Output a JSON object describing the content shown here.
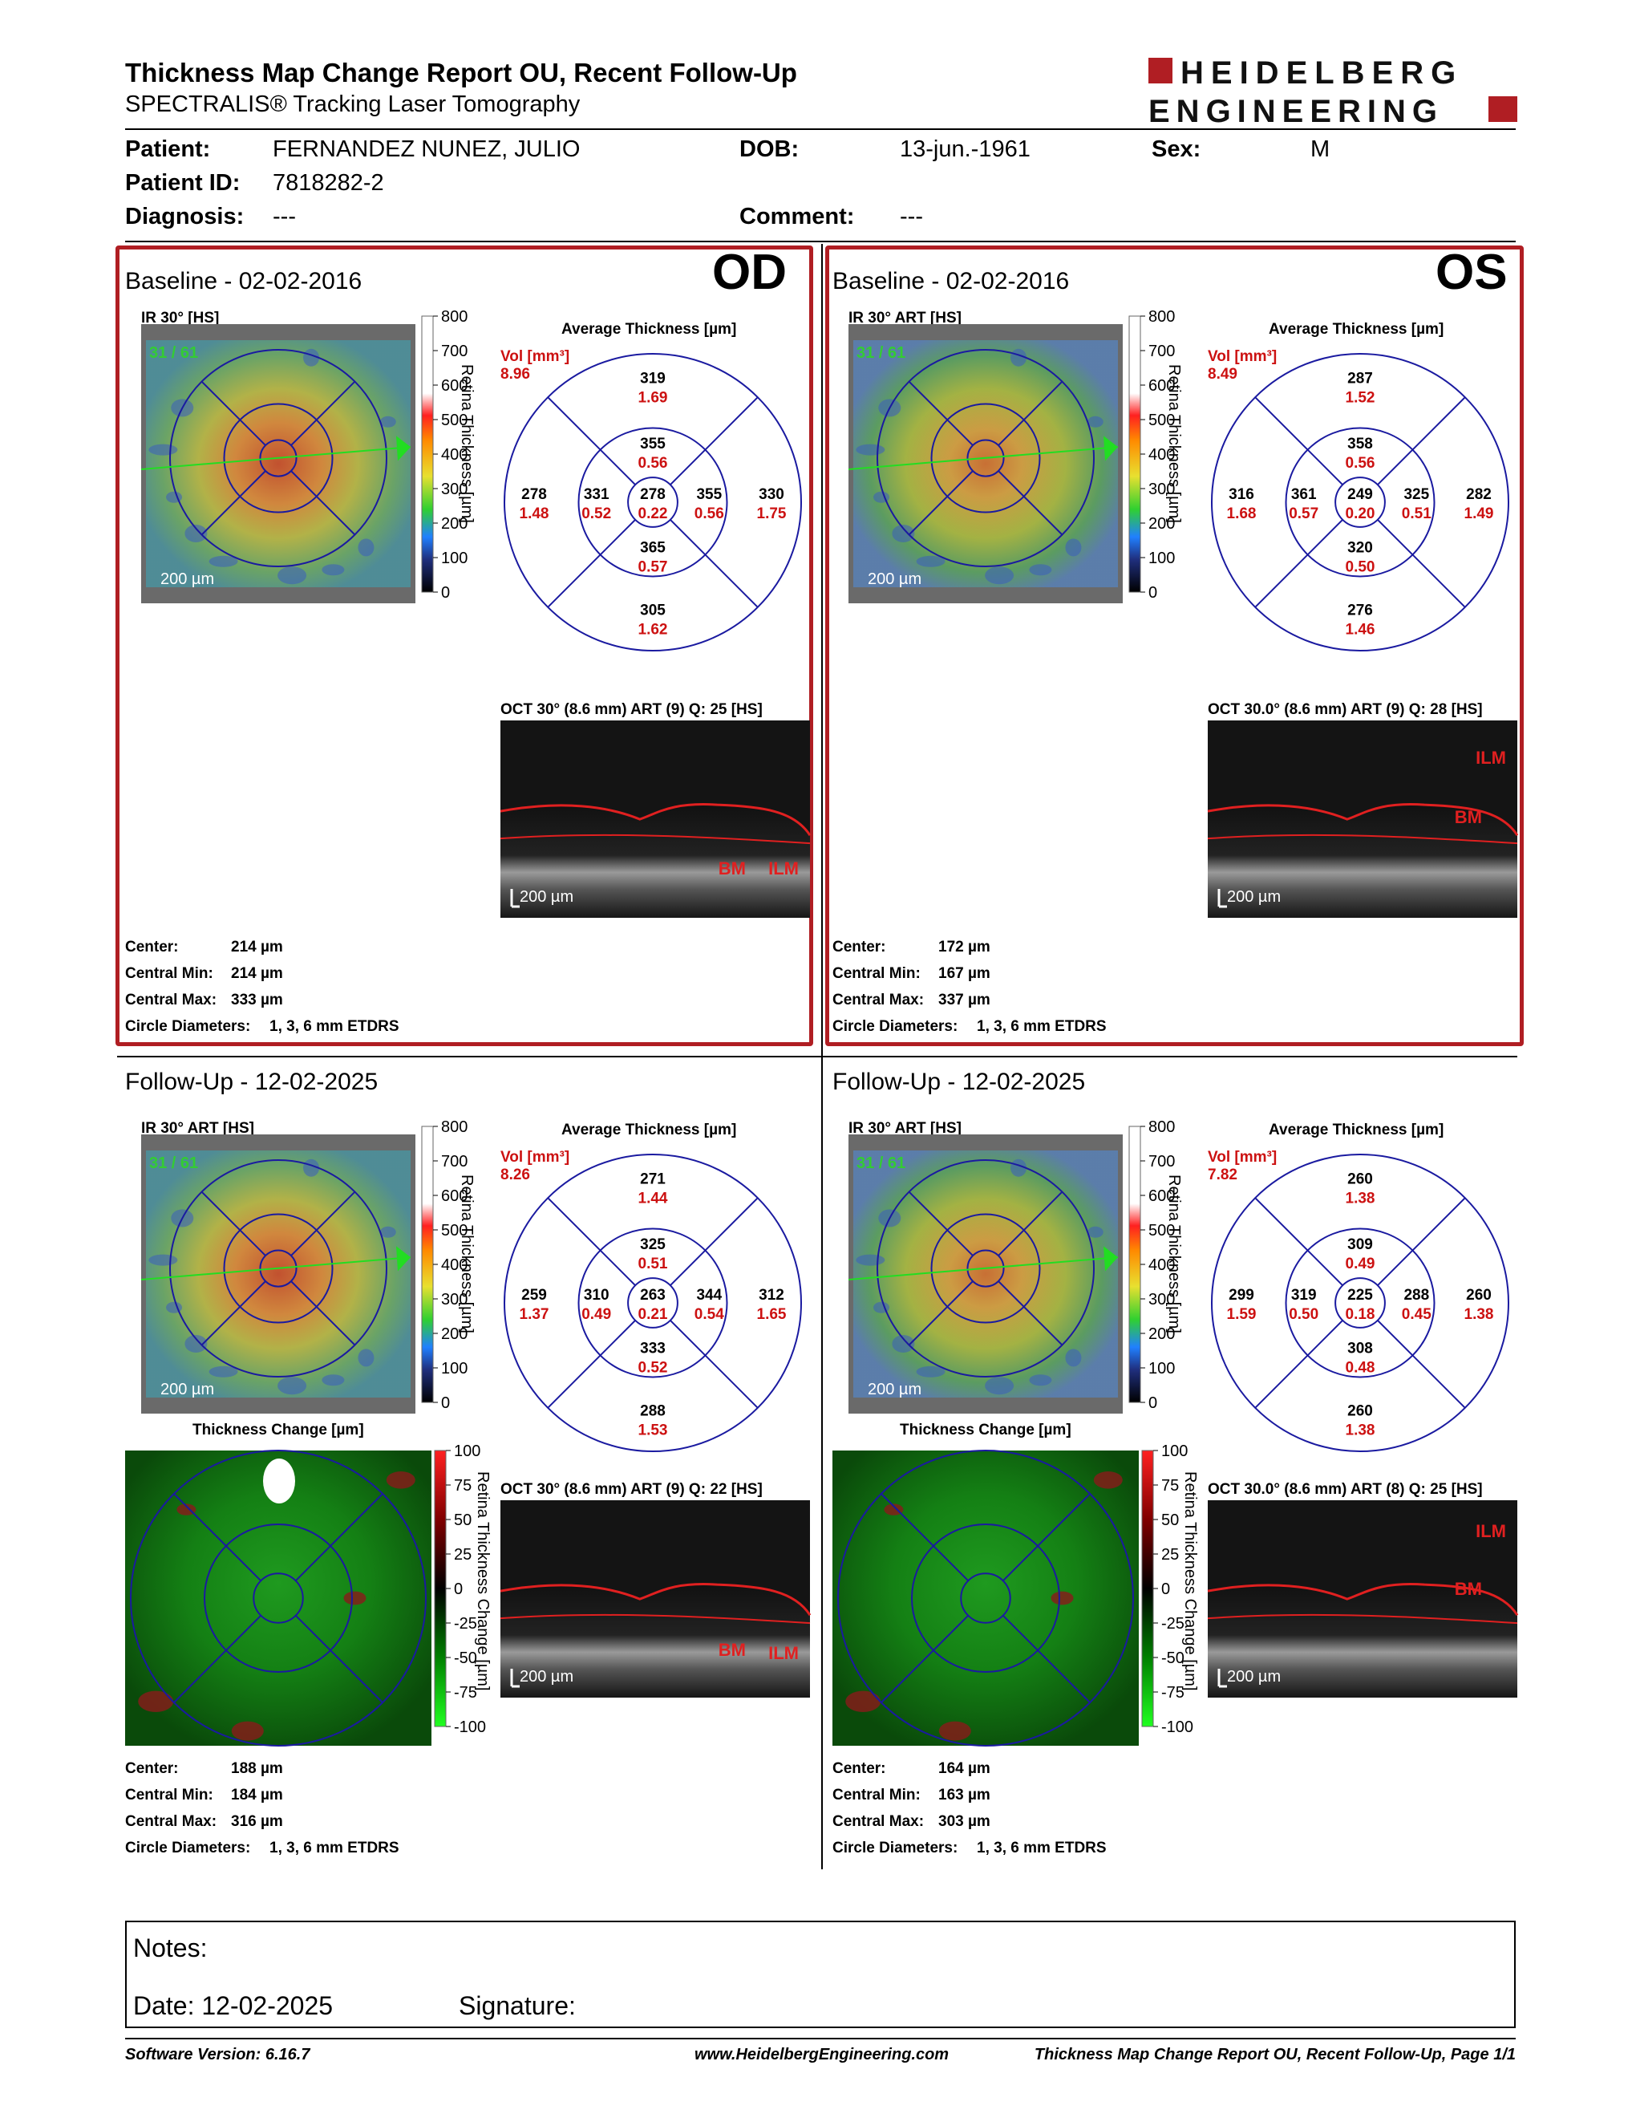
{
  "header": {
    "title": "Thickness Map Change Report OU, Recent Follow-Up",
    "subtitle": "SPECTRALIS® Tracking Laser Tomography",
    "logo_line1": "HEIDELBERG",
    "logo_line2": "ENGINEERING"
  },
  "patient": {
    "patient_label": "Patient:",
    "patient_value": "FERNANDEZ NUNEZ, JULIO",
    "id_label": "Patient ID:",
    "id_value": "7818282-2",
    "diagnosis_label": "Diagnosis:",
    "diagnosis_value": "---",
    "dob_label": "DOB:",
    "dob_value": "13-jun.-1961",
    "comment_label": "Comment:",
    "comment_value": "---",
    "sex_label": "Sex:",
    "sex_value": "M"
  },
  "colors": {
    "accent": "#B01E23",
    "circle": "#1A1AA0",
    "vol": "#CC1111",
    "fovea_label": "#33CC33"
  },
  "common": {
    "avg_thickness_title": "Average Thickness [µm]",
    "vol_label": "Vol [mm³]",
    "scale_bar": "200 µm",
    "colorbar_label": "Retina Thickness [µm]",
    "colorbar_ticks": [
      "800",
      "700",
      "600",
      "500",
      "400",
      "300",
      "200",
      "100",
      "0"
    ],
    "change_title": "Thickness Change [µm]",
    "change_bar_label": "Retina Thickness Change [µm]",
    "change_ticks": [
      "100",
      "75",
      "50",
      "25",
      "0",
      "-25",
      "-50",
      "-75",
      "-100"
    ],
    "ilm": "ILM",
    "bm": "BM",
    "label_center": "Center:",
    "label_cmin": "Central Min:",
    "label_cmax": "Central Max:",
    "label_circle": "Circle Diameters:"
  },
  "panels": {
    "od_base": {
      "eye": "OD",
      "title": "Baseline - 02-02-2016",
      "ir_label": "IR 30° [HS]",
      "fovea_text": "31 / 61",
      "oct_label": "OCT 30° (8.6 mm) ART (9) Q: 25 [HS]",
      "vol": "8.96",
      "sectors": {
        "sup_o": {
          "t": "319",
          "v": "1.69"
        },
        "sup_i": {
          "t": "355",
          "v": "0.56"
        },
        "left_o": {
          "t": "278",
          "v": "1.48"
        },
        "left_i": {
          "t": "331",
          "v": "0.52"
        },
        "center": {
          "t": "278",
          "v": "0.22"
        },
        "right_i": {
          "t": "355",
          "v": "0.56"
        },
        "right_o": {
          "t": "330",
          "v": "1.75"
        },
        "inf_i": {
          "t": "365",
          "v": "0.57"
        },
        "inf_o": {
          "t": "305",
          "v": "1.62"
        }
      },
      "stats": {
        "center": "214 µm",
        "cmin": "214 µm",
        "cmax": "333 µm",
        "circle": "1, 3, 6 mm ETDRS"
      }
    },
    "os_base": {
      "eye": "OS",
      "title": "Baseline - 02-02-2016",
      "ir_label": "IR 30° ART [HS]",
      "fovea_text": "31 / 61",
      "oct_label": "OCT 30.0° (8.6 mm) ART (9) Q: 28 [HS]",
      "vol": "8.49",
      "sectors": {
        "sup_o": {
          "t": "287",
          "v": "1.52"
        },
        "sup_i": {
          "t": "358",
          "v": "0.56"
        },
        "left_o": {
          "t": "316",
          "v": "1.68"
        },
        "left_i": {
          "t": "361",
          "v": "0.57"
        },
        "center": {
          "t": "249",
          "v": "0.20"
        },
        "right_i": {
          "t": "325",
          "v": "0.51"
        },
        "right_o": {
          "t": "282",
          "v": "1.49"
        },
        "inf_i": {
          "t": "320",
          "v": "0.50"
        },
        "inf_o": {
          "t": "276",
          "v": "1.46"
        }
      },
      "stats": {
        "center": "172 µm",
        "cmin": "167 µm",
        "cmax": "337 µm",
        "circle": "1, 3, 6 mm ETDRS"
      }
    },
    "od_fu": {
      "title": "Follow-Up - 12-02-2025",
      "ir_label": "IR 30° ART [HS]",
      "fovea_text": "31 / 61",
      "oct_label": "OCT 30° (8.6 mm) ART (9) Q: 22 [HS]",
      "vol": "8.26",
      "sectors": {
        "sup_o": {
          "t": "271",
          "v": "1.44"
        },
        "sup_i": {
          "t": "325",
          "v": "0.51"
        },
        "left_o": {
          "t": "259",
          "v": "1.37"
        },
        "left_i": {
          "t": "310",
          "v": "0.49"
        },
        "center": {
          "t": "263",
          "v": "0.21"
        },
        "right_i": {
          "t": "344",
          "v": "0.54"
        },
        "right_o": {
          "t": "312",
          "v": "1.65"
        },
        "inf_i": {
          "t": "333",
          "v": "0.52"
        },
        "inf_o": {
          "t": "288",
          "v": "1.53"
        }
      },
      "stats": {
        "center": "188 µm",
        "cmin": "184 µm",
        "cmax": "316 µm",
        "circle": "1, 3, 6 mm ETDRS"
      }
    },
    "os_fu": {
      "title": "Follow-Up - 12-02-2025",
      "ir_label": "IR 30° ART [HS]",
      "fovea_text": "31 / 61",
      "oct_label": "OCT 30.0° (8.6 mm) ART (8) Q: 25 [HS]",
      "vol": "7.82",
      "sectors": {
        "sup_o": {
          "t": "260",
          "v": "1.38"
        },
        "sup_i": {
          "t": "309",
          "v": "0.49"
        },
        "left_o": {
          "t": "299",
          "v": "1.59"
        },
        "left_i": {
          "t": "319",
          "v": "0.50"
        },
        "center": {
          "t": "225",
          "v": "0.18"
        },
        "right_i": {
          "t": "288",
          "v": "0.45"
        },
        "right_o": {
          "t": "260",
          "v": "1.38"
        },
        "inf_i": {
          "t": "308",
          "v": "0.48"
        },
        "inf_o": {
          "t": "260",
          "v": "1.38"
        }
      },
      "stats": {
        "center": "164 µm",
        "cmin": "163 µm",
        "cmax": "303 µm",
        "circle": "1, 3, 6 mm ETDRS"
      }
    }
  },
  "notes": {
    "notes_label": "Notes:",
    "date_label": "Date: 12-02-2025",
    "signature_label": "Signature:"
  },
  "footer": {
    "software": "Software Version: 6.16.7",
    "website": "www.HeidelbergEngineering.com",
    "page_info": "Thickness Map Change Report OU, Recent Follow-Up, Page 1/1"
  }
}
